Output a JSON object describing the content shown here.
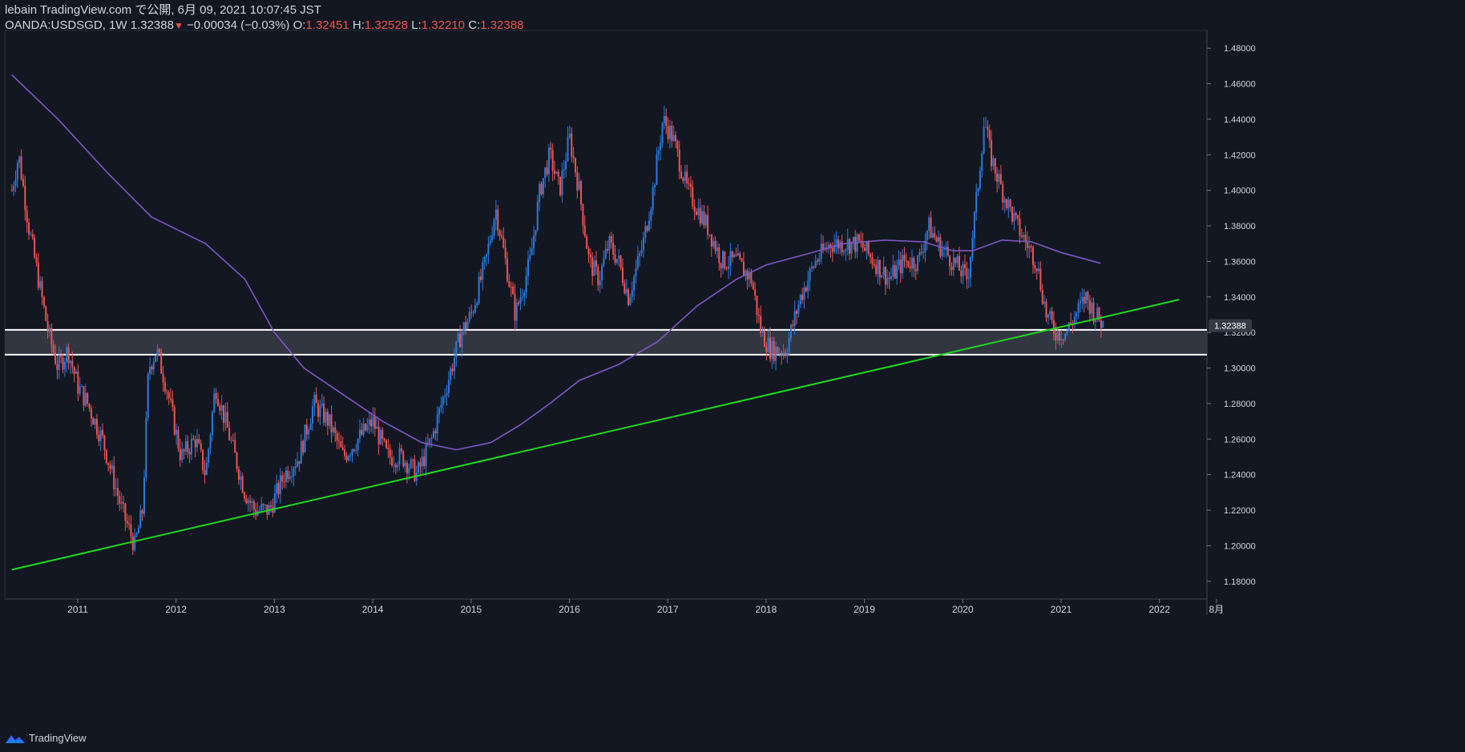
{
  "header": {
    "line1": "lebain TradingView.com で公開, 6月 09, 2021 10:07:45 JST",
    "symbol": "OANDA:USDSGD, 1W",
    "last": "1.32388",
    "change": "−0.00034 (−0.03%)",
    "o_label": "O:",
    "o_val": "1.32451",
    "h_label": "H:",
    "h_val": "1.32528",
    "l_label": "L:",
    "l_val": "1.32210",
    "c_label": "C:",
    "c_val": "1.32388"
  },
  "brand": {
    "label": "TradingView"
  },
  "chart_data": {
    "type": "line",
    "title": "",
    "xlabel": "",
    "ylabel": "",
    "ylim": [
      1.17,
      1.49
    ],
    "xlim": [
      2010.33,
      2022.2
    ],
    "y_ticks": [
      "1.18000",
      "1.20000",
      "1.22000",
      "1.24000",
      "1.26000",
      "1.28000",
      "1.30000",
      "1.32000",
      "1.34000",
      "1.36000",
      "1.38000",
      "1.40000",
      "1.42000",
      "1.44000",
      "1.46000",
      "1.48000"
    ],
    "x_ticks": [
      {
        "label": "2011",
        "x": 2011
      },
      {
        "label": "2012",
        "x": 2012
      },
      {
        "label": "2013",
        "x": 2013
      },
      {
        "label": "2014",
        "x": 2014
      },
      {
        "label": "2015",
        "x": 2015
      },
      {
        "label": "2016",
        "x": 2016
      },
      {
        "label": "2017",
        "x": 2017
      },
      {
        "label": "2018",
        "x": 2018
      },
      {
        "label": "2019",
        "x": 2019
      },
      {
        "label": "2020",
        "x": 2020
      },
      {
        "label": "2021",
        "x": 2021
      },
      {
        "label": "2022",
        "x": 2022
      },
      {
        "label": "8月",
        "x": 2022.58
      }
    ],
    "last_price_label": "1.32388",
    "last_price": 1.32388,
    "price_path": [
      [
        2010.33,
        1.4
      ],
      [
        2010.4,
        1.42
      ],
      [
        2010.5,
        1.38
      ],
      [
        2010.6,
        1.35
      ],
      [
        2010.7,
        1.32
      ],
      [
        2010.8,
        1.3
      ],
      [
        2010.9,
        1.31
      ],
      [
        2011.0,
        1.29
      ],
      [
        2011.1,
        1.28
      ],
      [
        2011.25,
        1.26
      ],
      [
        2011.35,
        1.24
      ],
      [
        2011.45,
        1.22
      ],
      [
        2011.58,
        1.2
      ],
      [
        2011.66,
        1.22
      ],
      [
        2011.72,
        1.3
      ],
      [
        2011.8,
        1.31
      ],
      [
        2011.9,
        1.29
      ],
      [
        2012.05,
        1.25
      ],
      [
        2012.2,
        1.26
      ],
      [
        2012.3,
        1.24
      ],
      [
        2012.4,
        1.29
      ],
      [
        2012.55,
        1.26
      ],
      [
        2012.7,
        1.23
      ],
      [
        2012.8,
        1.22
      ],
      [
        2012.95,
        1.22
      ],
      [
        2013.1,
        1.24
      ],
      [
        2013.25,
        1.25
      ],
      [
        2013.4,
        1.28
      ],
      [
        2013.55,
        1.27
      ],
      [
        2013.7,
        1.25
      ],
      [
        2013.85,
        1.26
      ],
      [
        2014.0,
        1.27
      ],
      [
        2014.15,
        1.25
      ],
      [
        2014.3,
        1.25
      ],
      [
        2014.45,
        1.24
      ],
      [
        2014.6,
        1.26
      ],
      [
        2014.75,
        1.29
      ],
      [
        2014.9,
        1.32
      ],
      [
        2015.0,
        1.33
      ],
      [
        2015.15,
        1.36
      ],
      [
        2015.25,
        1.39
      ],
      [
        2015.35,
        1.36
      ],
      [
        2015.45,
        1.33
      ],
      [
        2015.6,
        1.36
      ],
      [
        2015.7,
        1.4
      ],
      [
        2015.8,
        1.42
      ],
      [
        2015.9,
        1.4
      ],
      [
        2016.0,
        1.43
      ],
      [
        2016.1,
        1.4
      ],
      [
        2016.2,
        1.36
      ],
      [
        2016.3,
        1.35
      ],
      [
        2016.4,
        1.37
      ],
      [
        2016.5,
        1.36
      ],
      [
        2016.6,
        1.34
      ],
      [
        2016.75,
        1.37
      ],
      [
        2016.85,
        1.4
      ],
      [
        2016.95,
        1.44
      ],
      [
        2017.05,
        1.43
      ],
      [
        2017.2,
        1.4
      ],
      [
        2017.4,
        1.38
      ],
      [
        2017.55,
        1.36
      ],
      [
        2017.7,
        1.36
      ],
      [
        2017.85,
        1.35
      ],
      [
        2017.95,
        1.32
      ],
      [
        2018.05,
        1.31
      ],
      [
        2018.2,
        1.31
      ],
      [
        2018.35,
        1.34
      ],
      [
        2018.5,
        1.36
      ],
      [
        2018.65,
        1.37
      ],
      [
        2018.8,
        1.37
      ],
      [
        2018.95,
        1.37
      ],
      [
        2019.1,
        1.36
      ],
      [
        2019.25,
        1.35
      ],
      [
        2019.4,
        1.36
      ],
      [
        2019.55,
        1.36
      ],
      [
        2019.65,
        1.38
      ],
      [
        2019.75,
        1.37
      ],
      [
        2019.9,
        1.36
      ],
      [
        2020.05,
        1.35
      ],
      [
        2020.15,
        1.4
      ],
      [
        2020.22,
        1.44
      ],
      [
        2020.28,
        1.42
      ],
      [
        2020.4,
        1.4
      ],
      [
        2020.55,
        1.38
      ],
      [
        2020.65,
        1.37
      ],
      [
        2020.75,
        1.36
      ],
      [
        2020.85,
        1.33
      ],
      [
        2020.95,
        1.32
      ],
      [
        2021.05,
        1.32
      ],
      [
        2021.15,
        1.33
      ],
      [
        2021.25,
        1.34
      ],
      [
        2021.35,
        1.33
      ],
      [
        2021.44,
        1.32388
      ]
    ],
    "ma_path": [
      [
        2010.33,
        1.465
      ],
      [
        2010.8,
        1.44
      ],
      [
        2011.3,
        1.41
      ],
      [
        2011.75,
        1.385
      ],
      [
        2012.3,
        1.37
      ],
      [
        2012.7,
        1.35
      ],
      [
        2013.0,
        1.32
      ],
      [
        2013.3,
        1.3
      ],
      [
        2013.7,
        1.285
      ],
      [
        2014.1,
        1.27
      ],
      [
        2014.5,
        1.258
      ],
      [
        2014.85,
        1.254
      ],
      [
        2015.2,
        1.258
      ],
      [
        2015.5,
        1.268
      ],
      [
        2015.8,
        1.28
      ],
      [
        2016.1,
        1.293
      ],
      [
        2016.5,
        1.302
      ],
      [
        2016.9,
        1.315
      ],
      [
        2017.3,
        1.335
      ],
      [
        2017.7,
        1.35
      ],
      [
        2018.0,
        1.358
      ],
      [
        2018.4,
        1.364
      ],
      [
        2018.8,
        1.37
      ],
      [
        2019.2,
        1.372
      ],
      [
        2019.6,
        1.371
      ],
      [
        2019.9,
        1.366
      ],
      [
        2020.1,
        1.366
      ],
      [
        2020.4,
        1.372
      ],
      [
        2020.7,
        1.371
      ],
      [
        2021.0,
        1.365
      ],
      [
        2021.4,
        1.359
      ]
    ],
    "support_zone": [
      1.3075,
      1.3215
    ],
    "trendline": [
      [
        2010.33,
        1.1865
      ],
      [
        2022.2,
        1.3385
      ]
    ],
    "colors": {
      "up": "#2a7bde",
      "down": "#ef5350",
      "ma": "#7e57c2",
      "trend": "#1fd81f",
      "zone_fill": "#363a45",
      "zone_edge": "#ffffff",
      "bg": "#131722",
      "text": "#d1d4dc"
    }
  }
}
